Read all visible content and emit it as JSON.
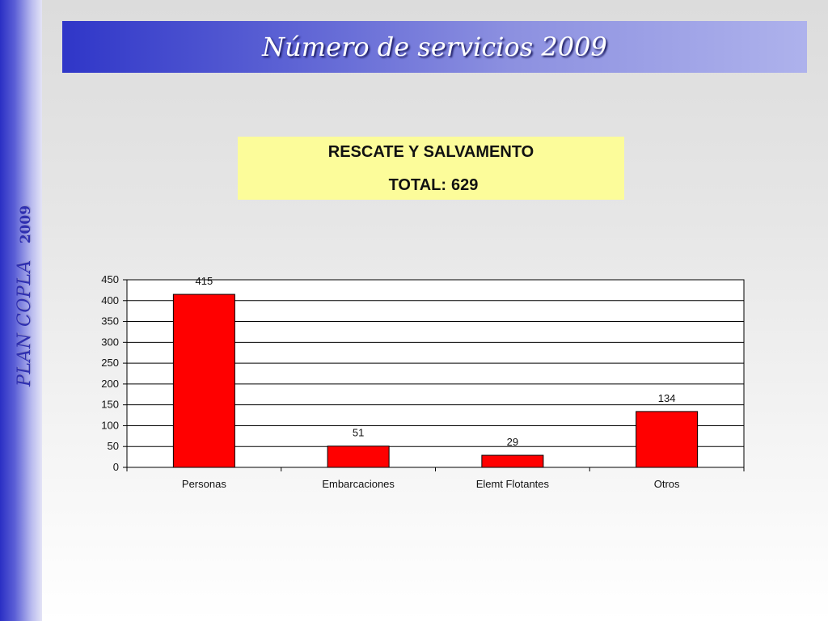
{
  "slide": {
    "title": "Número de servicios 2009",
    "side_label": "PLAN COPLA",
    "side_year": "2009"
  },
  "info_box": {
    "heading": "RESCATE Y SALVAMENTO",
    "total_label": "TOTAL:",
    "total_value": "629"
  },
  "colors": {
    "bar": "#ff0000",
    "accent": "#2f36c8",
    "box": "#fcfc9a"
  },
  "chart_data": {
    "type": "bar",
    "categories": [
      "Personas",
      "Embarcaciones",
      "Elemt Flotantes",
      "Otros"
    ],
    "values": [
      415,
      51,
      29,
      134
    ],
    "ylim": [
      0,
      450
    ],
    "yticks": [
      0,
      50,
      100,
      150,
      200,
      250,
      300,
      350,
      400,
      450
    ],
    "grid": true,
    "data_labels": true
  }
}
